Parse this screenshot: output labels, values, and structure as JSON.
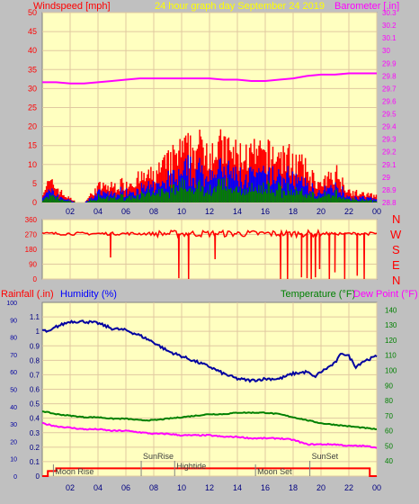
{
  "header": {
    "windspeed_label": "Windspeed [mph]",
    "graph_title": "24 hour graph day   September 24 2019",
    "barometer_label": "Barometer [.in]"
  },
  "lower_header": {
    "rainfall_label": "Rainfall (.in)",
    "humidity_label": "Humidity (%)",
    "temperature_label": "Temperature (°F)",
    "dewpoint_label": "Dew Point (°F)"
  },
  "compass": [
    "N",
    "W",
    "S",
    "E",
    "N"
  ],
  "colors": {
    "plot_bg": "#ffffc0",
    "frame_bg": "#c0c0c0",
    "grid": "#e0c8a0",
    "wind_gust": "#ff0000",
    "wind_avg": "#0000ff",
    "wind_low": "#008000",
    "barometer": "#ff00ff",
    "direction": "#ff0000",
    "humidity": "#0000a0",
    "temperature": "#008000",
    "dewpoint": "#ff00ff",
    "rain": "#ff0000"
  },
  "chart_data": [
    {
      "type": "bar",
      "name": "wind",
      "ylim": [
        0,
        50
      ],
      "ytick_labels": [
        "0",
        "5",
        "10",
        "15",
        "20",
        "25",
        "30",
        "35",
        "40",
        "45",
        "50"
      ],
      "y2lim": [
        28.8,
        30.3
      ],
      "y2tick_labels": [
        "28.8",
        "28.9",
        "29",
        "29.1",
        "29.2",
        "29.3",
        "29.4",
        "29.5",
        "29.6",
        "29.7",
        "29.8",
        "29.9",
        "30",
        "30.1",
        "30.2",
        "30.3"
      ],
      "x_tick_labels": [
        "02",
        "04",
        "06",
        "08",
        "10",
        "12",
        "14",
        "16",
        "18",
        "20",
        "22",
        "00"
      ],
      "gust_profile": {
        "x": [
          0,
          0.5,
          1,
          1.5,
          2,
          2.5,
          3,
          3.5,
          4,
          5,
          6,
          7,
          8,
          9,
          10,
          11,
          12,
          13,
          14,
          15,
          16,
          17,
          18,
          19,
          20,
          20.5,
          21,
          22,
          23,
          24
        ],
        "y": [
          3,
          5,
          4,
          2,
          1,
          0,
          0,
          2,
          4,
          4,
          5,
          6,
          7,
          10,
          13,
          14,
          14,
          14,
          12,
          12,
          12,
          12,
          11,
          8,
          4,
          6,
          8,
          3,
          2,
          2
        ]
      },
      "avg_ratio": 0.58,
      "low_ratio": 0.3,
      "barometer": {
        "x": [
          0,
          1,
          2,
          3,
          4,
          5,
          6,
          7,
          8,
          9,
          10,
          11,
          12,
          13,
          14,
          15,
          16,
          17,
          18,
          19,
          20,
          21,
          22,
          23,
          24
        ],
        "y": [
          29.75,
          29.75,
          29.74,
          29.74,
          29.75,
          29.76,
          29.77,
          29.78,
          29.78,
          29.78,
          29.78,
          29.78,
          29.78,
          29.77,
          29.77,
          29.76,
          29.76,
          29.77,
          29.78,
          29.8,
          29.81,
          29.81,
          29.82,
          29.82,
          29.82
        ]
      }
    },
    {
      "type": "line",
      "name": "wind direction",
      "ylim": [
        0,
        360
      ],
      "ytick_labels": [
        "0",
        "90",
        "180",
        "270",
        "360"
      ],
      "base_direction": 275,
      "spikes": [
        {
          "x": 4.9,
          "y": 130
        },
        {
          "x": 9.8,
          "y": 5
        },
        {
          "x": 10.5,
          "y": 0
        },
        {
          "x": 12.4,
          "y": 120
        },
        {
          "x": 17.1,
          "y": 0
        },
        {
          "x": 17.6,
          "y": 0
        },
        {
          "x": 18.6,
          "y": 10
        },
        {
          "x": 19.0,
          "y": 5
        },
        {
          "x": 19.3,
          "y": 0
        },
        {
          "x": 19.6,
          "y": 10
        },
        {
          "x": 19.9,
          "y": 60
        },
        {
          "x": 20.6,
          "y": 0
        },
        {
          "x": 21.0,
          "y": 40
        },
        {
          "x": 21.7,
          "y": 0
        },
        {
          "x": 22.6,
          "y": 20
        },
        {
          "x": 23.1,
          "y": 0
        }
      ]
    },
    {
      "type": "line",
      "name": "lower",
      "rain_ylim": [
        0,
        1.2
      ],
      "rain_ticks": [
        "0",
        "0.1",
        "0.2",
        "0.3",
        "0.4",
        "0.5",
        "0.6",
        "0.7",
        "0.8",
        "0.9",
        "1",
        "1.1"
      ],
      "humidity_ylim": [
        0,
        100
      ],
      "humidity_ticks": [
        "0",
        "10",
        "20",
        "30",
        "40",
        "50",
        "60",
        "70",
        "80",
        "90",
        "100"
      ],
      "temp_ylim": [
        30,
        145
      ],
      "temp_ticks": [
        "40",
        "50",
        "60",
        "70",
        "80",
        "90",
        "100",
        "110",
        "120",
        "130",
        "140"
      ],
      "x_tick_labels": [
        "02",
        "04",
        "06",
        "08",
        "10",
        "12",
        "14",
        "16",
        "18",
        "20",
        "22",
        "00"
      ],
      "humidity": {
        "x": [
          0,
          0.5,
          1,
          2,
          3,
          4,
          5,
          6,
          7,
          8,
          9,
          10,
          11,
          12,
          13,
          14,
          15,
          16,
          17,
          18,
          19,
          19.5,
          20,
          21,
          21.5,
          22,
          22.5,
          23,
          24
        ],
        "y": [
          84,
          83,
          86,
          89,
          89,
          88,
          85,
          84,
          81,
          77,
          72,
          69,
          66,
          63,
          59,
          56,
          55,
          56,
          56,
          59,
          60,
          57,
          60,
          65,
          71,
          69,
          63,
          66,
          69
        ]
      },
      "temperature": {
        "x": [
          0,
          1,
          2,
          3,
          4,
          5,
          6,
          7,
          8,
          9,
          10,
          11,
          12,
          13,
          14,
          15,
          16,
          17,
          18,
          19,
          20,
          21,
          22,
          23,
          24
        ],
        "y": [
          73,
          71,
          70,
          69,
          69,
          68,
          68,
          67,
          67,
          68,
          69,
          70,
          71,
          71,
          72,
          72,
          72,
          71,
          69,
          67,
          65,
          64,
          63,
          62,
          61
        ]
      },
      "dewpoint": {
        "x": [
          0,
          1,
          2,
          3,
          4,
          5,
          6,
          7,
          8,
          9,
          10,
          11,
          12,
          13,
          14,
          15,
          16,
          17,
          18,
          19,
          20,
          21,
          22,
          23,
          24
        ],
        "y": [
          65,
          63,
          62,
          61,
          61,
          60,
          60,
          59,
          58,
          58,
          57,
          57,
          57,
          56,
          56,
          55,
          55,
          55,
          54,
          51,
          51,
          51,
          50,
          50,
          49
        ]
      },
      "rain_total": 0.01,
      "events": [
        {
          "label": "SunRise",
          "x": 7.1
        },
        {
          "label": "SunSet",
          "x": 19.2
        },
        {
          "label": "Moon Rise",
          "x": 0.8
        },
        {
          "label": "Moon Set",
          "x": 15.3
        },
        {
          "label": "Hightide",
          "x": 9.5
        }
      ]
    }
  ]
}
